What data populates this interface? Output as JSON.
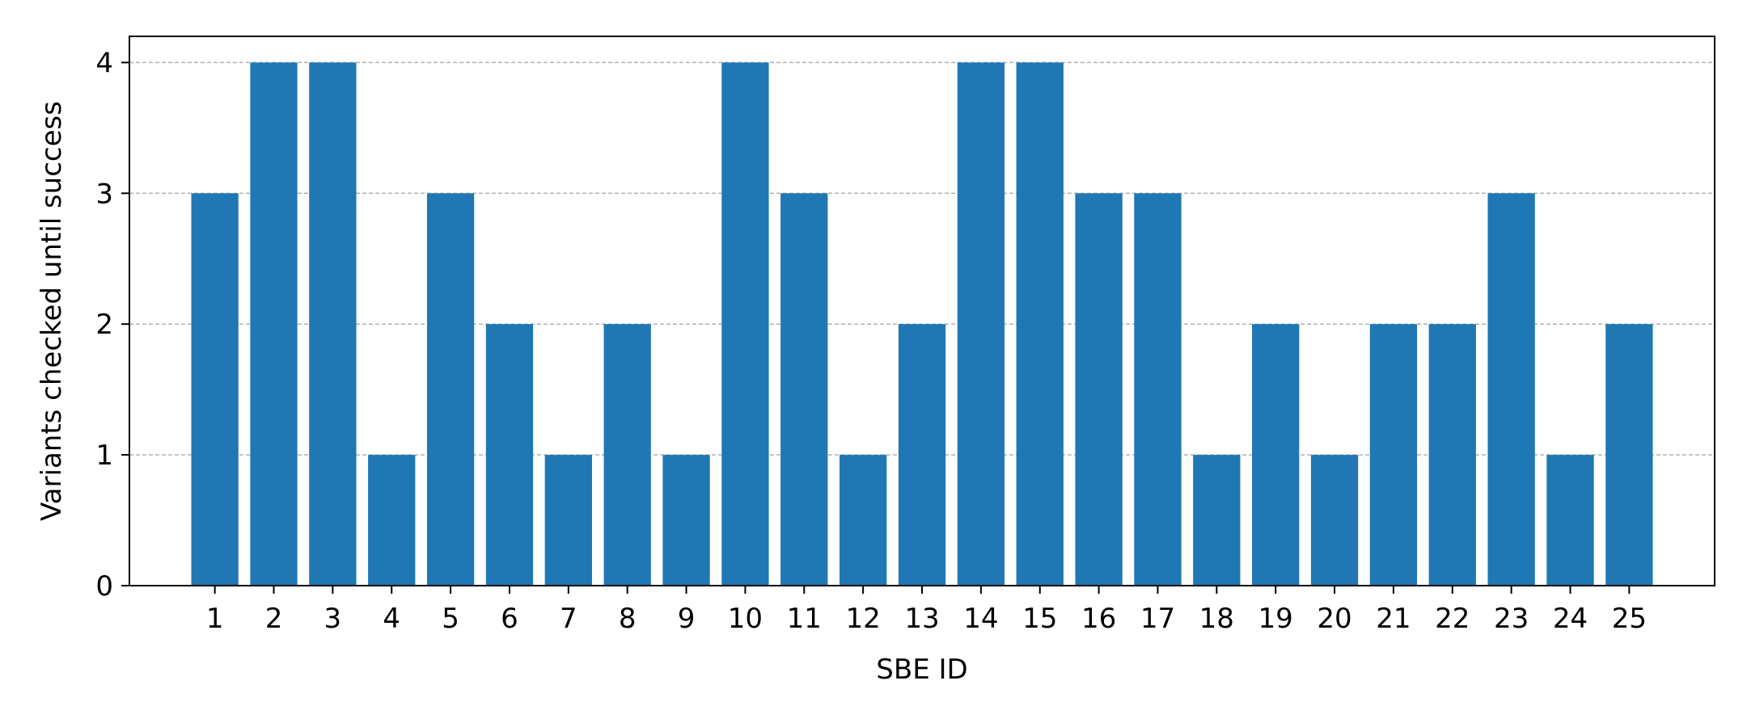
{
  "chart_data": {
    "type": "bar",
    "title": "",
    "xlabel": "SBE ID",
    "ylabel": "Variants checked until success",
    "categories": [
      "1",
      "2",
      "3",
      "4",
      "5",
      "6",
      "7",
      "8",
      "9",
      "10",
      "11",
      "12",
      "13",
      "14",
      "15",
      "16",
      "17",
      "18",
      "19",
      "20",
      "21",
      "22",
      "23",
      "24",
      "25"
    ],
    "values": [
      3,
      4,
      4,
      1,
      3,
      2,
      1,
      2,
      1,
      4,
      3,
      1,
      2,
      4,
      4,
      3,
      3,
      1,
      2,
      1,
      2,
      2,
      3,
      1,
      2
    ],
    "ylim": [
      0,
      4.2
    ],
    "yticks": [
      "0",
      "1",
      "2",
      "3",
      "4"
    ],
    "grid": "horizontal dashed",
    "bar_color": "#1f77b4",
    "grid_color": "#b0b0b0"
  }
}
